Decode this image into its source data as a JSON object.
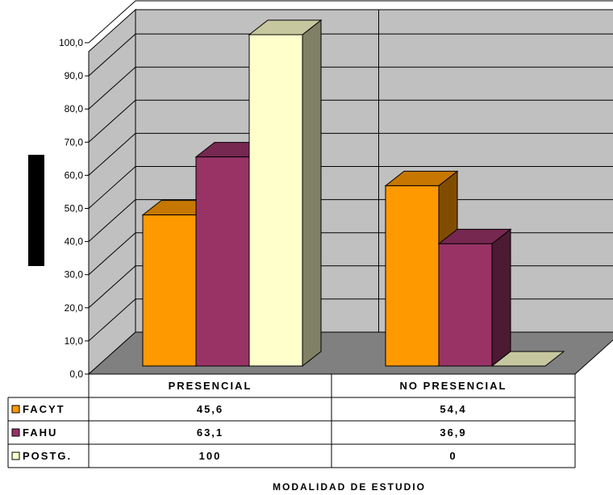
{
  "chart_data": {
    "type": "bar",
    "categories": [
      "PRESENCIAL",
      "NO PRESENCIAL"
    ],
    "series": [
      {
        "name": "FACYT",
        "values": [
          45.6,
          54.4
        ],
        "value_labels": [
          "45,6",
          "54,4"
        ],
        "color": "#FF9900"
      },
      {
        "name": "FAHU",
        "values": [
          63.1,
          36.9
        ],
        "value_labels": [
          "63,1",
          "36,9"
        ],
        "color": "#993366"
      },
      {
        "name": "POSTG.",
        "values": [
          100,
          0
        ],
        "value_labels": [
          "100",
          "0"
        ],
        "color": "#FFFFCC"
      }
    ],
    "y_ticks": [
      "0,0",
      "10,0",
      "20,0",
      "30,0",
      "40,0",
      "50,0",
      "60,0",
      "70,0",
      "80,0",
      "90,0",
      "100,0"
    ],
    "ylim": [
      0,
      100
    ],
    "xlabel": "MODALIDAD DE ESTUDIO",
    "ylabel": "",
    "grid": true,
    "three_d": true,
    "data_table": true,
    "legend_placement": "data-table-left",
    "wall_color": "#C0C0C0",
    "floor_color": "#808080"
  }
}
